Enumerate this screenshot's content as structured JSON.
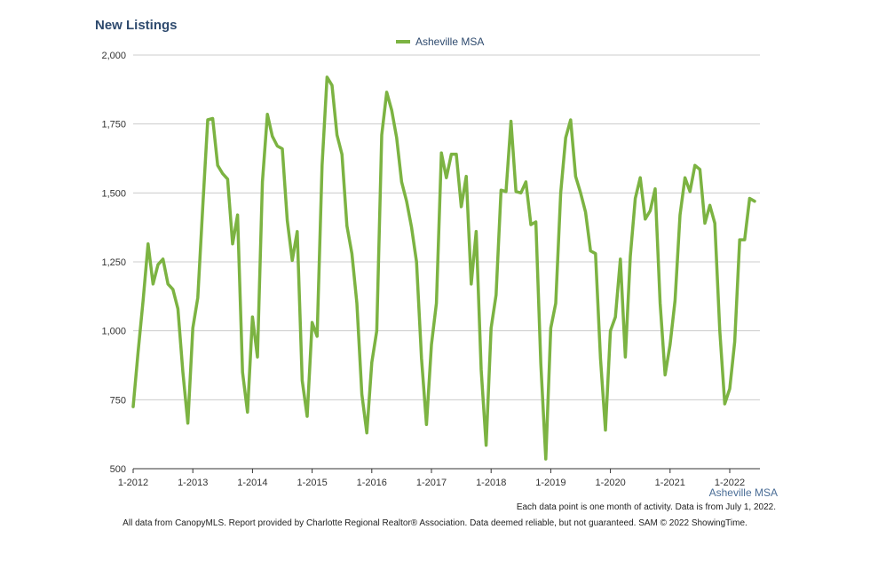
{
  "colors": {
    "series": "#7cb342",
    "grid": "#cccccc",
    "axis": "#333333",
    "title": "#2e4a6e"
  },
  "footer": {
    "note": "Each data point is one month of activity. Data is from July 1, 2022.",
    "source": "All data from CanopyMLS. Report provided by Charlotte Regional Realtor® Association. Data deemed reliable, but not guaranteed. SAM © 2022 ShowingTime."
  },
  "chart_data": {
    "type": "line",
    "title": "New Listings",
    "legend": [
      "Asheville MSA"
    ],
    "series_label": "Asheville MSA",
    "ylim": [
      500,
      2000
    ],
    "yticks": [
      500,
      750,
      1000,
      1250,
      1500,
      1750,
      2000
    ],
    "ytick_labels": [
      "500",
      "750",
      "1,000",
      "1,250",
      "1,500",
      "1,750",
      "2,000"
    ],
    "xlabels": [
      "1-2012",
      "1-2013",
      "1-2014",
      "1-2015",
      "1-2016",
      "1-2017",
      "1-2018",
      "1-2019",
      "1-2020",
      "1-2021",
      "1-2022"
    ],
    "start": "1-2012",
    "series": [
      {
        "name": "Asheville MSA",
        "values": [
          725,
          925,
          1110,
          1315,
          1170,
          1240,
          1260,
          1170,
          1150,
          1080,
          850,
          665,
          1010,
          1120,
          1450,
          1765,
          1770,
          1600,
          1570,
          1550,
          1315,
          1420,
          850,
          705,
          1050,
          905,
          1540,
          1785,
          1705,
          1670,
          1660,
          1400,
          1255,
          1360,
          820,
          690,
          1030,
          980,
          1600,
          1920,
          1890,
          1710,
          1640,
          1380,
          1280,
          1100,
          770,
          630,
          885,
          1000,
          1710,
          1865,
          1800,
          1700,
          1540,
          1470,
          1375,
          1250,
          900,
          660,
          950,
          1100,
          1645,
          1555,
          1640,
          1640,
          1450,
          1560,
          1170,
          1360,
          860,
          585,
          1010,
          1130,
          1510,
          1505,
          1760,
          1505,
          1500,
          1540,
          1385,
          1395,
          880,
          535,
          1010,
          1100,
          1500,
          1700,
          1765,
          1560,
          1500,
          1430,
          1290,
          1280,
          900,
          640,
          1000,
          1050,
          1260,
          905,
          1270,
          1480,
          1555,
          1405,
          1435,
          1515,
          1100,
          840,
          950,
          1110,
          1420,
          1555,
          1505,
          1600,
          1585,
          1390,
          1455,
          1390,
          1000,
          735,
          790,
          960,
          1330,
          1330,
          1480,
          1470
        ]
      }
    ]
  }
}
